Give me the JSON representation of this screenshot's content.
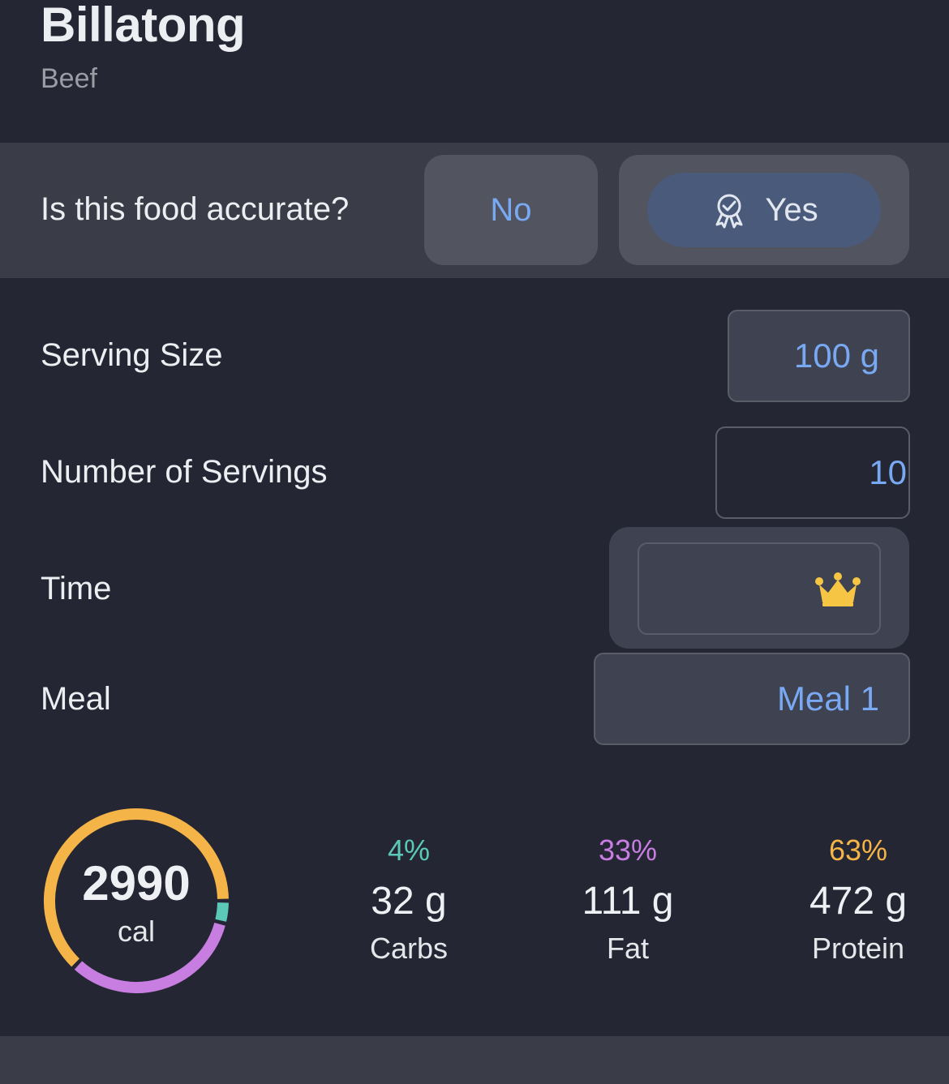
{
  "food": {
    "title": "Billatong",
    "subtitle": "Beef"
  },
  "accuracy": {
    "question": "Is this food accurate?",
    "no_label": "No",
    "yes_label": "Yes"
  },
  "serving_size": {
    "label": "Serving Size",
    "value": "100 g"
  },
  "num_servings": {
    "label": "Number of Servings",
    "value": "10"
  },
  "time": {
    "label": "Time",
    "value": ""
  },
  "meal": {
    "label": "Meal",
    "value": "Meal 1"
  },
  "calories": {
    "value": "2990",
    "unit": "cal"
  },
  "macros": {
    "carbs": {
      "pct": "4%",
      "grams": "32 g",
      "name": "Carbs",
      "color": "#5cc8b8",
      "fraction": 0.04
    },
    "fat": {
      "pct": "33%",
      "grams": "111 g",
      "name": "Fat",
      "color": "#c77ee0",
      "fraction": 0.33
    },
    "protein": {
      "pct": "63%",
      "grams": "472 g",
      "name": "Protein",
      "color": "#f5b447",
      "fraction": 0.63
    }
  },
  "colors": {
    "accent": "#78a9f2",
    "crown": "#f7c544",
    "background": "#242733"
  },
  "icons": {
    "yes_button": "award-check-icon",
    "time_field": "crown-icon"
  }
}
